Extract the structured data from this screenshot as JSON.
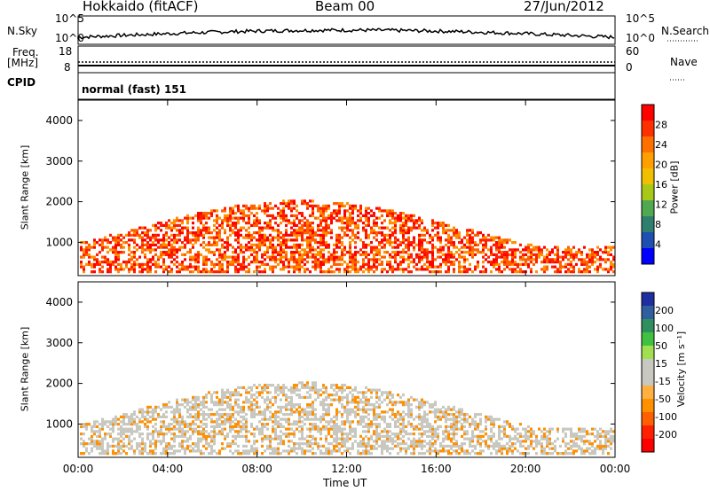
{
  "header": {
    "station": "Hokkaido (fitACF)",
    "beam": "Beam 00",
    "date": "27/Jun/2012"
  },
  "top_panels": {
    "nsky_label": "N.Sky",
    "nsky_ticks": [
      "10^5",
      "10^0"
    ],
    "nsearch_label": "N.Search",
    "freq_label_line1": "Freq.",
    "freq_label_line2": "[MHz]",
    "freq_ticks": [
      "18",
      "8"
    ],
    "nave_ticks": [
      "60",
      "0"
    ],
    "nave_label": "Nave",
    "cpid_label": "CPID",
    "cpid_value": "normal (fast) 151"
  },
  "chart_data": [
    {
      "type": "heatmap",
      "panel": "power",
      "ylabel": "Slant Range [km]",
      "yticks": [
        1000,
        2000,
        3000,
        4000
      ],
      "ylim": [
        180,
        4500
      ],
      "colorbar_label": "Power [dB]",
      "colorbar_ticks": [
        "28",
        "24",
        "20",
        "16",
        "12",
        "8",
        "4"
      ],
      "colorbar_colors": [
        "#ff0000",
        "#ff3000",
        "#ff7000",
        "#ffa000",
        "#f0c000",
        "#a8c818",
        "#50a850",
        "#2f7f6f",
        "#1f4fb0",
        "#0000ff"
      ]
    },
    {
      "type": "heatmap",
      "panel": "velocity",
      "ylabel": "Slant Range [km]",
      "yticks": [
        1000,
        2000,
        3000,
        4000
      ],
      "ylim": [
        180,
        4500
      ],
      "colorbar_label": "Velocity [m s⁻¹]",
      "colorbar_ticks": [
        "200",
        "100",
        "50",
        "15",
        "-15",
        "-50",
        "-100",
        "-200"
      ],
      "colorbar_colors": [
        "#1f2f9f",
        "#2f5f9f",
        "#2f8f5f",
        "#40c040",
        "#a0e050",
        "#c8c8c0",
        "#c8c8c0",
        "#ffb040",
        "#ff9000",
        "#ff6000",
        "#ff2000",
        "#ff0000"
      ]
    }
  ],
  "xaxis": {
    "label": "Time UT",
    "ticks": [
      "00:00",
      "04:00",
      "08:00",
      "12:00",
      "16:00",
      "20:00",
      "00:00"
    ]
  }
}
